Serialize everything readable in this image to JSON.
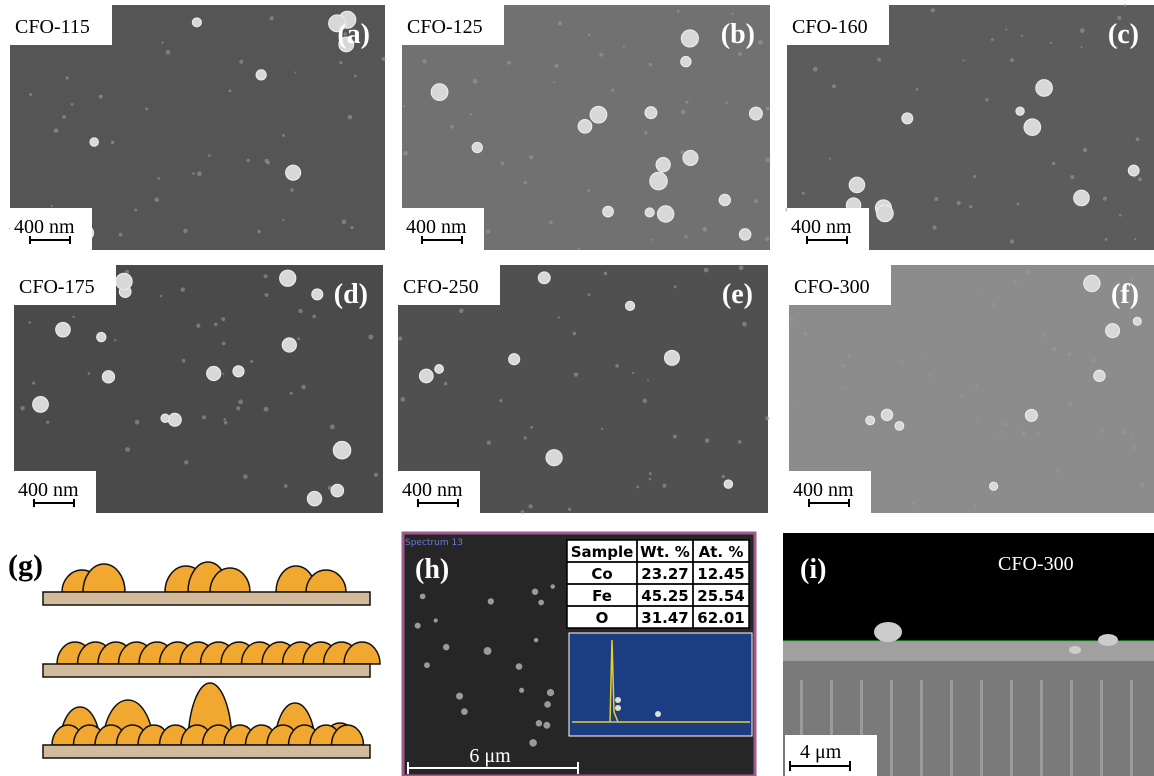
{
  "panels": [
    {
      "letter": "(a)",
      "sample": "CFO-115",
      "scale": "400 nm"
    },
    {
      "letter": "(b)",
      "sample": "CFO-125",
      "scale": "400 nm"
    },
    {
      "letter": "(c)",
      "sample": "CFO-160",
      "scale": "400 nm"
    },
    {
      "letter": "(d)",
      "sample": "CFO-175",
      "scale": "400 nm"
    },
    {
      "letter": "(e)",
      "sample": "CFO-250",
      "scale": "400 nm"
    },
    {
      "letter": "(f)",
      "sample": "CFO-300",
      "scale": "400 nm"
    }
  ],
  "schematic": {
    "letter": "(g)"
  },
  "eds": {
    "letter": "(h)",
    "spectrum": "Spectrum 13",
    "table": {
      "header": [
        "Sample",
        "Wt. %",
        "At. %"
      ],
      "rows": [
        [
          "Co",
          "23.27",
          "12.45"
        ],
        [
          "Fe",
          "45.25",
          "25.54"
        ],
        [
          "O",
          "31.47",
          "62.01"
        ]
      ]
    },
    "scale": "6 μm"
  },
  "cross_section": {
    "letter": "(i)",
    "sample": "CFO-300",
    "scale": "4 μm"
  }
}
